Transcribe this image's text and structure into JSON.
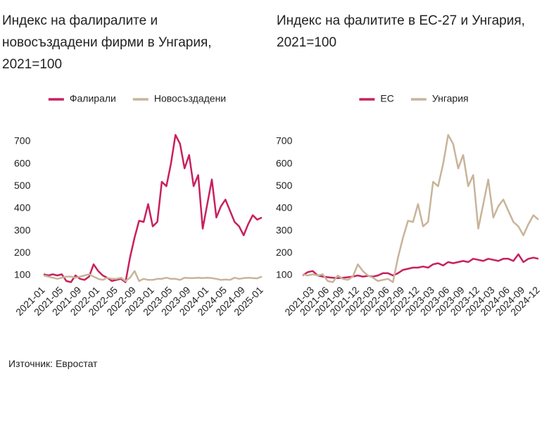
{
  "chart_data": [
    {
      "type": "line",
      "title": "Индекс на фалиралите и новосъздадени фирми в  Унгария, 2021=100",
      "categories": [
        "2021-01",
        null,
        null,
        null,
        "2021-05",
        null,
        null,
        null,
        "2021-09",
        null,
        null,
        null,
        "2022-01",
        null,
        null,
        null,
        "2022-05",
        null,
        null,
        null,
        "2022-09",
        null,
        null,
        null,
        "2023-01",
        null,
        null,
        null,
        "2023-05",
        null,
        null,
        null,
        "2023-09",
        null,
        null,
        null,
        "2024-01",
        null,
        null,
        null,
        "2024-05",
        null,
        null,
        null,
        "2024-09",
        null,
        null,
        null,
        "2025-01"
      ],
      "series": [
        {
          "name": "Фалирали",
          "color": "#c8205e",
          "values": [
            105,
            100,
            105,
            100,
            105,
            75,
            70,
            100,
            85,
            80,
            95,
            150,
            120,
            100,
            90,
            75,
            80,
            85,
            70,
            180,
            270,
            345,
            340,
            420,
            320,
            340,
            520,
            500,
            600,
            730,
            690,
            580,
            640,
            500,
            550,
            310,
            420,
            530,
            360,
            410,
            440,
            390,
            340,
            320,
            280,
            330,
            370,
            350,
            360
          ]
        },
        {
          "name": "Новосъздадени",
          "color": "#c8b49a",
          "values": [
            100,
            95,
            90,
            85,
            90,
            95,
            95,
            90,
            95,
            100,
            105,
            95,
            85,
            80,
            90,
            85,
            85,
            90,
            75,
            90,
            120,
            75,
            85,
            80,
            80,
            85,
            85,
            90,
            85,
            85,
            80,
            90,
            88,
            88,
            90,
            88,
            90,
            88,
            85,
            80,
            82,
            80,
            90,
            85,
            88,
            90,
            88,
            87,
            95
          ]
        }
      ],
      "ylim": [
        50,
        750
      ],
      "yticks": [
        100,
        200,
        300,
        400,
        500,
        600,
        700
      ],
      "legend": "top"
    },
    {
      "type": "line",
      "title": "Индекс на фалитите в ЕС-27 и Унгария, 2021=100",
      "categories": [
        null,
        null,
        "2021-03",
        null,
        null,
        "2021-06",
        null,
        null,
        "2021-09",
        null,
        null,
        "2021-12",
        null,
        null,
        "2022-03",
        null,
        null,
        "2022-06",
        null,
        null,
        "2022-09",
        null,
        null,
        "2022-12",
        null,
        null,
        "2023-03",
        null,
        null,
        "2023-06",
        null,
        null,
        "2023-09",
        null,
        null,
        "2023-12",
        null,
        null,
        "2024-03",
        null,
        null,
        "2024-06",
        null,
        null,
        "2024-09",
        null,
        null,
        "2024-12"
      ],
      "series": [
        {
          "name": "ЕС",
          "color": "#c8205e",
          "values": [
            100,
            115,
            120,
            100,
            95,
            92,
            90,
            88,
            90,
            92,
            95,
            100,
            95,
            98,
            95,
            100,
            110,
            110,
            100,
            110,
            125,
            130,
            135,
            135,
            140,
            135,
            150,
            155,
            145,
            160,
            155,
            160,
            165,
            160,
            175,
            170,
            165,
            175,
            170,
            165,
            175,
            175,
            165,
            195,
            160,
            175,
            180,
            175
          ]
        },
        {
          "name": "Унгария",
          "color": "#c8b49a",
          "values": [
            105,
            100,
            105,
            100,
            105,
            75,
            70,
            100,
            85,
            80,
            95,
            150,
            120,
            100,
            90,
            75,
            80,
            85,
            70,
            180,
            270,
            345,
            340,
            420,
            320,
            340,
            520,
            500,
            600,
            730,
            690,
            580,
            640,
            500,
            550,
            310,
            420,
            530,
            360,
            410,
            440,
            390,
            340,
            320,
            280,
            330,
            370,
            350
          ]
        }
      ],
      "ylim": [
        50,
        750
      ],
      "yticks": [
        100,
        200,
        300,
        400,
        500,
        600,
        700
      ],
      "legend": "top"
    }
  ],
  "source": "Източник: Евростат"
}
